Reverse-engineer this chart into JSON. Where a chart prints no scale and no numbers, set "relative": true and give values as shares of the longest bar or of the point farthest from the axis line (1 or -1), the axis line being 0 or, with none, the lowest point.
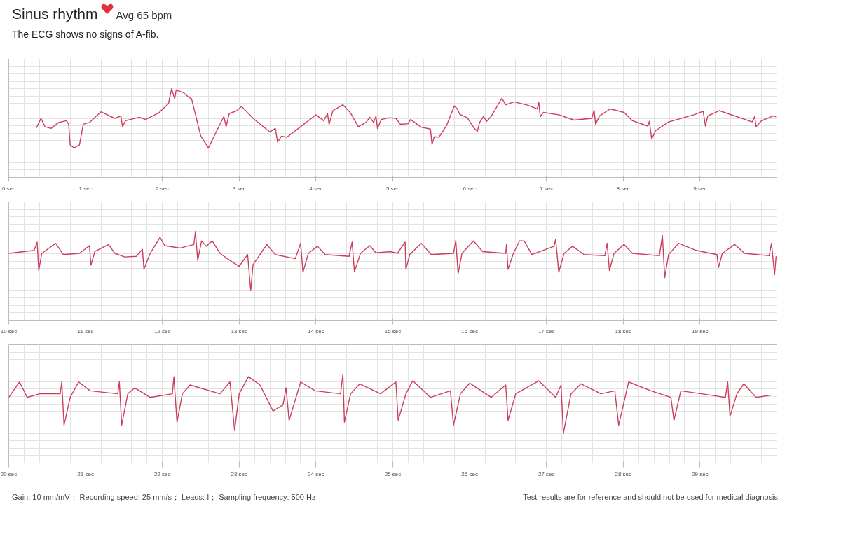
{
  "chart_data": [
    {
      "type": "line",
      "title": "Sinus rhythm",
      "subtitle": "The ECG shows no signs of A-fib.",
      "annotations": [
        "Avg 65 bpm"
      ],
      "relative": true,
      "color": "#cc3d5c",
      "grid": true,
      "tick_labels": "x",
      "xlim": [
        0,
        10
      ],
      "xticks": [
        {
          "value": 0,
          "label": "0 sec"
        },
        {
          "value": 1,
          "label": "1 sec"
        },
        {
          "value": 2,
          "label": "2 sec"
        },
        {
          "value": 3,
          "label": "3 sec"
        },
        {
          "value": 4,
          "label": "4 sec"
        },
        {
          "value": 5,
          "label": "5 sec"
        },
        {
          "value": 6,
          "label": "6 sec"
        },
        {
          "value": 7,
          "label": "7 sec"
        },
        {
          "value": 8,
          "label": "8 sec"
        },
        {
          "value": 9,
          "label": "9 sec"
        }
      ],
      "x": [
        0.36,
        0.42,
        0.47,
        0.55,
        0.65,
        0.75,
        0.78,
        0.8,
        0.85,
        0.92,
        0.97,
        1.05,
        1.2,
        1.38,
        1.46,
        1.48,
        1.52,
        1.7,
        1.78,
        1.95,
        2.08,
        2.12,
        2.16,
        2.18,
        2.28,
        2.35,
        2.38,
        2.5,
        2.6,
        2.7,
        2.8,
        2.83,
        2.87,
        2.97,
        3.03,
        3.1,
        3.2,
        3.4,
        3.47,
        3.5,
        3.55,
        3.62,
        3.8,
        4.0,
        4.1,
        4.15,
        4.17,
        4.22,
        4.35,
        4.45,
        4.55,
        4.65,
        4.7,
        4.75,
        4.78,
        4.8,
        4.85,
        4.95,
        5.04,
        5.1,
        5.2,
        5.23,
        5.37,
        5.49,
        5.51,
        5.54,
        5.6,
        5.7,
        5.8,
        5.84,
        5.87,
        5.97,
        6.05,
        6.1,
        6.13,
        6.18,
        6.22,
        6.28,
        6.42,
        6.47,
        6.58,
        6.76,
        6.88,
        6.9,
        6.92,
        6.96,
        7.16,
        7.36,
        7.59,
        7.62,
        7.64,
        7.69,
        7.83,
        8.01,
        8.12,
        8.32,
        8.34,
        8.37,
        8.42,
        8.59,
        8.92,
        9.04,
        9.07,
        9.1,
        9.25,
        9.68,
        9.71,
        9.73,
        9.8,
        9.95,
        9.99
      ],
      "values": [
        0.34,
        0.5,
        0.36,
        0.33,
        0.43,
        0.46,
        0.4,
        0.05,
        0,
        0.05,
        0.4,
        0.43,
        0.61,
        0.5,
        0.54,
        0.36,
        0.46,
        0.52,
        0.48,
        0.59,
        0.75,
        1.0,
        0.83,
        0.98,
        0.93,
        0.85,
        0.83,
        0.2,
        0,
        0.27,
        0.53,
        0.36,
        0.58,
        0.63,
        0.7,
        0.61,
        0.48,
        0.27,
        0.33,
        0.1,
        0.2,
        0.18,
        0.36,
        0.56,
        0.46,
        0.58,
        0.4,
        0.63,
        0.73,
        0.59,
        0.36,
        0.43,
        0.52,
        0.43,
        0.54,
        0.33,
        0.48,
        0.51,
        0.5,
        0.4,
        0.41,
        0.48,
        0.35,
        0.32,
        0.06,
        0.19,
        0.18,
        0.38,
        0.71,
        0.66,
        0.57,
        0.51,
        0.35,
        0.28,
        0.43,
        0.53,
        0.45,
        0.53,
        0.84,
        0.73,
        0.78,
        0.72,
        0.66,
        0.77,
        0.53,
        0.6,
        0.56,
        0.47,
        0.5,
        0.64,
        0.4,
        0.54,
        0.66,
        0.6,
        0.46,
        0.37,
        0.45,
        0.15,
        0.29,
        0.44,
        0.56,
        0.62,
        0.37,
        0.54,
        0.63,
        0.44,
        0.53,
        0.36,
        0.46,
        0.54,
        0.53
      ]
    },
    {
      "type": "line",
      "relative": true,
      "color": "#cc3d5c",
      "grid": true,
      "tick_labels": "x",
      "xlim": [
        10,
        20
      ],
      "xticks": [
        {
          "value": 10,
          "label": "10 sec"
        },
        {
          "value": 11,
          "label": "11 sec"
        },
        {
          "value": 12,
          "label": "12 sec"
        },
        {
          "value": 13,
          "label": "13 sec"
        },
        {
          "value": 14,
          "label": "14 sec"
        },
        {
          "value": 15,
          "label": "15 sec"
        },
        {
          "value": 16,
          "label": "16 sec"
        },
        {
          "value": 17,
          "label": "17 sec"
        },
        {
          "value": 18,
          "label": "18 sec"
        },
        {
          "value": 19,
          "label": "19 sec"
        }
      ],
      "x": [
        10.0,
        10.33,
        10.37,
        10.39,
        10.43,
        10.61,
        10.71,
        10.92,
        11.05,
        11.07,
        11.12,
        11.3,
        11.38,
        11.51,
        11.66,
        11.74,
        11.76,
        11.84,
        11.97,
        12.03,
        12.23,
        12.41,
        12.43,
        12.46,
        12.51,
        12.57,
        12.65,
        12.75,
        12.88,
        13.0,
        13.11,
        13.15,
        13.18,
        13.36,
        13.47,
        13.73,
        13.8,
        13.83,
        13.9,
        14.02,
        14.12,
        14.43,
        14.47,
        14.5,
        14.58,
        14.7,
        14.78,
        14.97,
        15.06,
        15.16,
        15.17,
        15.22,
        15.37,
        15.5,
        15.79,
        15.82,
        15.85,
        15.9,
        16.05,
        16.17,
        16.47,
        16.48,
        16.5,
        16.57,
        16.65,
        16.71,
        16.81,
        17.1,
        17.12,
        17.16,
        17.23,
        17.34,
        17.49,
        17.76,
        17.79,
        17.82,
        17.88,
        18.01,
        18.12,
        18.47,
        18.51,
        18.54,
        18.59,
        18.72,
        18.95,
        19.22,
        19.24,
        19.29,
        19.45,
        19.58,
        19.9,
        19.93,
        19.97,
        19.99
      ],
      "values": [
        0.63,
        0.68,
        0.82,
        0.34,
        0.63,
        0.8,
        0.61,
        0.63,
        0.76,
        0.43,
        0.66,
        0.78,
        0.63,
        0.57,
        0.58,
        0.7,
        0.36,
        0.63,
        0.9,
        0.76,
        0.72,
        0.78,
        1.0,
        0.51,
        0.84,
        0.75,
        0.84,
        0.63,
        0.51,
        0.41,
        0.61,
        0,
        0.44,
        0.78,
        0.61,
        0.54,
        0.8,
        0.31,
        0.63,
        0.75,
        0.61,
        0.58,
        0.82,
        0.32,
        0.63,
        0.76,
        0.64,
        0.66,
        0.63,
        0.82,
        0.36,
        0.61,
        0.8,
        0.61,
        0.63,
        0.85,
        0.29,
        0.63,
        0.84,
        0.66,
        0.63,
        0.78,
        0.36,
        0.63,
        0.84,
        0.84,
        0.61,
        0.75,
        0.87,
        0.31,
        0.63,
        0.75,
        0.61,
        0.59,
        0.8,
        0.34,
        0.63,
        0.78,
        0.63,
        0.59,
        0.93,
        0.22,
        0.61,
        0.8,
        0.68,
        0.61,
        0.39,
        0.63,
        0.78,
        0.63,
        0.59,
        0.8,
        0.27,
        0.58
      ]
    },
    {
      "type": "line",
      "relative": true,
      "color": "#cc3d5c",
      "grid": true,
      "tick_labels": "x",
      "annotations": [
        "Gain: 10 mm/mV；  Recording speed: 25 mm/s；  Leads: I；  Sampling frequency: 500 Hz",
        "Test results are for reference and should not be used for medical diagnosis."
      ],
      "xlim": [
        20,
        30
      ],
      "xticks": [
        {
          "value": 20,
          "label": "20 sec"
        },
        {
          "value": 21,
          "label": "21 sec"
        },
        {
          "value": 22,
          "label": "22 sec"
        },
        {
          "value": 23,
          "label": "23 sec"
        },
        {
          "value": 24,
          "label": "24 sec"
        },
        {
          "value": 25,
          "label": "25 sec"
        },
        {
          "value": 26,
          "label": "26 sec"
        },
        {
          "value": 27,
          "label": "27 sec"
        },
        {
          "value": 28,
          "label": "28 sec"
        },
        {
          "value": 29,
          "label": "29 sec"
        }
      ],
      "x": [
        20.0,
        20.14,
        20.24,
        20.4,
        20.67,
        20.69,
        20.72,
        20.8,
        20.91,
        21.06,
        21.42,
        21.44,
        21.47,
        21.55,
        21.64,
        21.84,
        22.13,
        22.15,
        22.19,
        22.26,
        22.36,
        22.75,
        22.88,
        22.94,
        23.0,
        23.12,
        23.27,
        23.44,
        23.57,
        23.61,
        23.65,
        23.8,
        23.99,
        24.32,
        24.35,
        24.37,
        24.45,
        24.57,
        24.84,
        25.04,
        25.07,
        25.17,
        25.26,
        25.49,
        25.75,
        25.79,
        25.88,
        26.0,
        26.28,
        26.47,
        26.5,
        26.6,
        26.9,
        27.12,
        27.19,
        27.22,
        27.32,
        27.45,
        27.71,
        27.89,
        27.94,
        28.07,
        28.36,
        28.62,
        28.66,
        28.75,
        29.02,
        29.33,
        29.36,
        29.39,
        29.48,
        29.57,
        29.73,
        29.93
      ],
      "values": [
        0.61,
        0.87,
        0.61,
        0.67,
        0.67,
        0.87,
        0.14,
        0.61,
        0.87,
        0.72,
        0.67,
        0.87,
        0.14,
        0.67,
        0.77,
        0.61,
        0.67,
        0.96,
        0.19,
        0.67,
        0.82,
        0.67,
        0.87,
        0.05,
        0.67,
        0.96,
        0.82,
        0.38,
        0.48,
        0.77,
        0.22,
        0.87,
        0.72,
        0.67,
        1.0,
        0.19,
        0.67,
        0.84,
        0.67,
        0.87,
        0.22,
        0.67,
        0.89,
        0.61,
        0.72,
        0.14,
        0.67,
        0.85,
        0.61,
        0.82,
        0.22,
        0.67,
        0.89,
        0.61,
        0.82,
        0,
        0.67,
        0.84,
        0.67,
        0.72,
        0.14,
        0.87,
        0.72,
        0.61,
        0.22,
        0.72,
        0.67,
        0.61,
        0.87,
        0.29,
        0.67,
        0.84,
        0.61,
        0.65
      ]
    }
  ]
}
